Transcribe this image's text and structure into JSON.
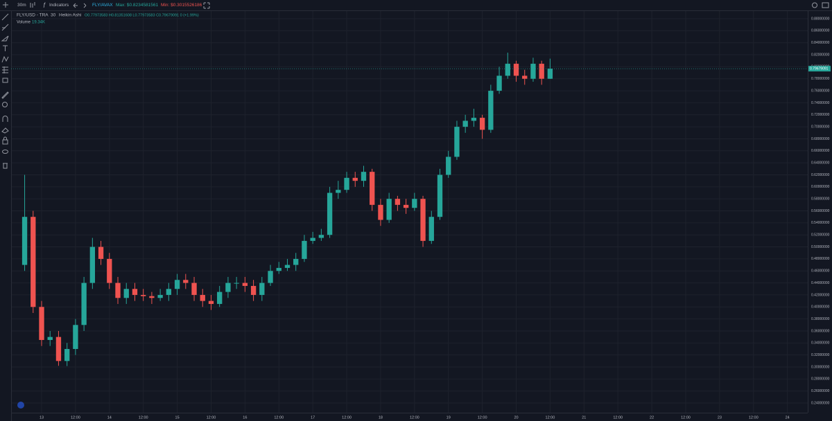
{
  "toolbar": {
    "interval": "30m",
    "indicators": "Indicators",
    "symbol": "FLY/AVAX",
    "max": "Max: $0.8234581561",
    "min": "Min: $0.3015526186"
  },
  "chart_data": {
    "type": "candlestick",
    "legend": {
      "title": "FLY/USD - TRA",
      "interval": "30",
      "style": "Heikin Ashi",
      "ohlc": "O0.77973583 H0.81351608 L0.77973583 C0.79679091 0 (+1.99%)",
      "volume_label": "Volume",
      "volume": "19.34K"
    },
    "x": [
      -6,
      -3,
      0,
      3,
      6,
      9,
      12,
      15,
      18,
      21,
      24,
      27,
      30,
      33,
      36,
      39,
      42,
      45,
      48,
      51,
      54,
      57,
      60,
      63,
      66,
      69,
      72,
      75,
      78,
      81,
      84,
      87,
      90,
      93,
      96,
      99,
      102,
      105,
      108,
      111,
      114,
      117,
      120,
      123,
      126,
      129,
      132,
      135,
      138,
      141,
      144,
      147,
      150,
      153,
      156,
      159,
      162,
      165,
      168,
      171,
      174,
      177,
      180
    ],
    "open": [
      0.47,
      0.55,
      0.4,
      0.345,
      0.35,
      0.31,
      0.33,
      0.37,
      0.44,
      0.5,
      0.48,
      0.44,
      0.415,
      0.43,
      0.42,
      0.418,
      0.415,
      0.42,
      0.43,
      0.445,
      0.44,
      0.42,
      0.41,
      0.405,
      0.425,
      0.44,
      0.44,
      0.435,
      0.42,
      0.44,
      0.46,
      0.465,
      0.47,
      0.48,
      0.51,
      0.515,
      0.52,
      0.59,
      0.595,
      0.615,
      0.61,
      0.625,
      0.57,
      0.545,
      0.58,
      0.57,
      0.565,
      0.58,
      0.51,
      0.55,
      0.62,
      0.65,
      0.7,
      0.71,
      0.715,
      0.695,
      0.76,
      0.785,
      0.805,
      0.785,
      0.78,
      0.805,
      0.78
    ],
    "high": [
      0.62,
      0.56,
      0.41,
      0.36,
      0.36,
      0.34,
      0.38,
      0.45,
      0.515,
      0.51,
      0.49,
      0.45,
      0.44,
      0.44,
      0.43,
      0.425,
      0.43,
      0.44,
      0.455,
      0.455,
      0.45,
      0.43,
      0.42,
      0.435,
      0.45,
      0.45,
      0.45,
      0.445,
      0.45,
      0.47,
      0.475,
      0.48,
      0.49,
      0.52,
      0.525,
      0.53,
      0.6,
      0.61,
      0.625,
      0.625,
      0.635,
      0.63,
      0.58,
      0.59,
      0.585,
      0.58,
      0.59,
      0.585,
      0.56,
      0.63,
      0.66,
      0.71,
      0.72,
      0.73,
      0.72,
      0.77,
      0.8,
      0.8234581561,
      0.81,
      0.795,
      0.815,
      0.81,
      0.81351608
    ],
    "low": [
      0.46,
      0.39,
      0.335,
      0.335,
      0.302,
      0.3015526186,
      0.32,
      0.36,
      0.43,
      0.47,
      0.43,
      0.405,
      0.405,
      0.41,
      0.41,
      0.405,
      0.41,
      0.41,
      0.42,
      0.43,
      0.41,
      0.4,
      0.395,
      0.4,
      0.415,
      0.43,
      0.425,
      0.41,
      0.41,
      0.435,
      0.455,
      0.46,
      0.46,
      0.475,
      0.505,
      0.51,
      0.515,
      0.58,
      0.59,
      0.6,
      0.6,
      0.56,
      0.535,
      0.54,
      0.56,
      0.555,
      0.56,
      0.5,
      0.505,
      0.545,
      0.615,
      0.645,
      0.69,
      0.7,
      0.68,
      0.69,
      0.755,
      0.78,
      0.775,
      0.77,
      0.775,
      0.77,
      0.77973583
    ],
    "close": [
      0.55,
      0.4,
      0.345,
      0.35,
      0.31,
      0.33,
      0.37,
      0.44,
      0.5,
      0.48,
      0.44,
      0.415,
      0.43,
      0.42,
      0.418,
      0.415,
      0.42,
      0.43,
      0.445,
      0.44,
      0.42,
      0.41,
      0.405,
      0.425,
      0.44,
      0.44,
      0.435,
      0.42,
      0.44,
      0.46,
      0.465,
      0.47,
      0.48,
      0.51,
      0.515,
      0.52,
      0.59,
      0.595,
      0.615,
      0.61,
      0.625,
      0.57,
      0.545,
      0.58,
      0.57,
      0.565,
      0.58,
      0.51,
      0.55,
      0.62,
      0.65,
      0.7,
      0.71,
      0.715,
      0.695,
      0.76,
      0.785,
      0.805,
      0.785,
      0.78,
      0.805,
      0.78,
      0.79679091
    ],
    "up_color": "#26a69a",
    "down_color": "#ef5350",
    "xlim": [
      -10.8,
      271.2
    ],
    "xticks": [
      {
        "value": 0,
        "label": "13"
      },
      {
        "value": 12,
        "label": "12:00"
      },
      {
        "value": 24,
        "label": "14"
      },
      {
        "value": 36,
        "label": "12:00"
      },
      {
        "value": 48,
        "label": "15"
      },
      {
        "value": 60,
        "label": "12:00"
      },
      {
        "value": 72,
        "label": "16"
      },
      {
        "value": 84,
        "label": "12:00"
      },
      {
        "value": 96,
        "label": "17"
      },
      {
        "value": 108,
        "label": "12:00"
      },
      {
        "value": 120,
        "label": "18"
      },
      {
        "value": 132,
        "label": "12:00"
      },
      {
        "value": 144,
        "label": "19"
      },
      {
        "value": 156,
        "label": "12:00"
      },
      {
        "value": 168,
        "label": "20"
      },
      {
        "value": 180,
        "label": "12:00"
      },
      {
        "value": 192,
        "label": "21"
      },
      {
        "value": 204,
        "label": "12:00"
      },
      {
        "value": 216,
        "label": "22"
      },
      {
        "value": 228,
        "label": "12:00"
      },
      {
        "value": 240,
        "label": "23"
      },
      {
        "value": 252,
        "label": "12:00"
      },
      {
        "value": 264,
        "label": "24"
      }
    ],
    "ylim": [
      0.2239,
      0.8927
    ],
    "yticks": [
      {
        "value": 0.24,
        "label": "0.24000000"
      },
      {
        "value": 0.26,
        "label": "0.26000000"
      },
      {
        "value": 0.28,
        "label": "0.28000000"
      },
      {
        "value": 0.3,
        "label": "0.30000000"
      },
      {
        "value": 0.32,
        "label": "0.32000000"
      },
      {
        "value": 0.34,
        "label": "0.34000000"
      },
      {
        "value": 0.36,
        "label": "0.36000000"
      },
      {
        "value": 0.38,
        "label": "0.38000000"
      },
      {
        "value": 0.4,
        "label": "0.40000000"
      },
      {
        "value": 0.42,
        "label": "0.42000000"
      },
      {
        "value": 0.44,
        "label": "0.44000000"
      },
      {
        "value": 0.46,
        "label": "0.46000000"
      },
      {
        "value": 0.48,
        "label": "0.48000000"
      },
      {
        "value": 0.5,
        "label": "0.50000000"
      },
      {
        "value": 0.52,
        "label": "0.52000000"
      },
      {
        "value": 0.54,
        "label": "0.54000000"
      },
      {
        "value": 0.56,
        "label": "0.56000000"
      },
      {
        "value": 0.58,
        "label": "0.58000000"
      },
      {
        "value": 0.6,
        "label": "0.60000000"
      },
      {
        "value": 0.62,
        "label": "0.62000000"
      },
      {
        "value": 0.64,
        "label": "0.64000000"
      },
      {
        "value": 0.66,
        "label": "0.66000000"
      },
      {
        "value": 0.68,
        "label": "0.68000000"
      },
      {
        "value": 0.7,
        "label": "0.70000000"
      },
      {
        "value": 0.72,
        "label": "0.72000000"
      },
      {
        "value": 0.74,
        "label": "0.74000000"
      },
      {
        "value": 0.76,
        "label": "0.76000000"
      },
      {
        "value": 0.78,
        "label": "0.78000000"
      },
      {
        "value": 0.8,
        "label": "0.80000000"
      },
      {
        "value": 0.82,
        "label": "0.82000000"
      },
      {
        "value": 0.84,
        "label": "0.84000000"
      },
      {
        "value": 0.86,
        "label": "0.86000000"
      },
      {
        "value": 0.88,
        "label": "0.88000000"
      }
    ],
    "grid": true
  }
}
